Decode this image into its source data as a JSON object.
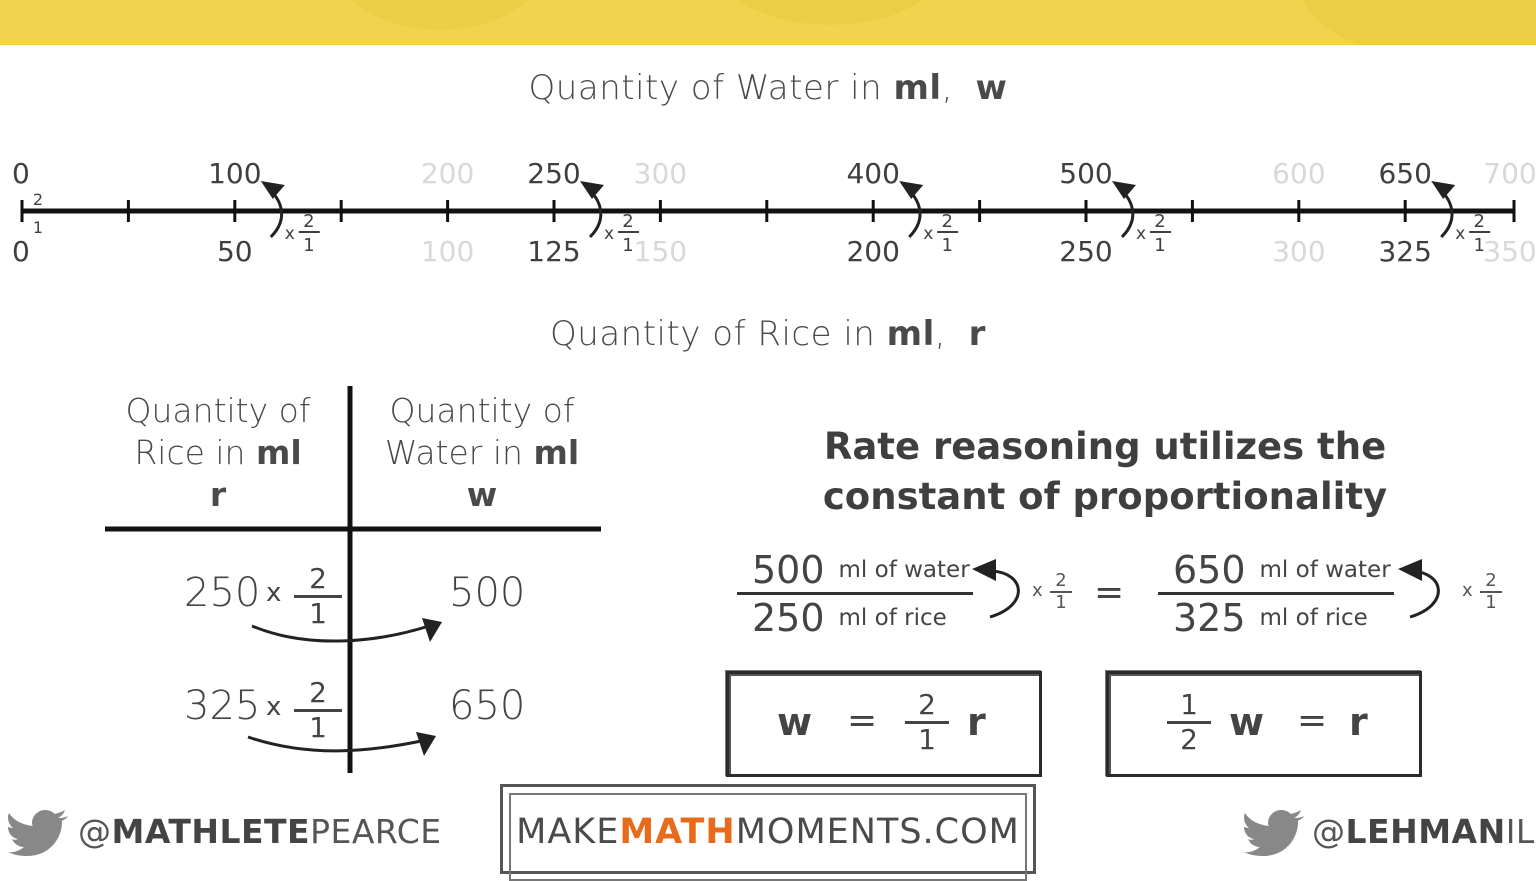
{
  "water_axis_title": {
    "text": "Quantity of Water in ",
    "bold_unit": "ml",
    "sep": ",",
    "var": "w"
  },
  "rice_axis_title": {
    "text": "Quantity of Rice in ",
    "bold_unit": "ml",
    "sep": ",",
    "var": "r"
  },
  "number_line": {
    "top_labels": [
      {
        "text": "0",
        "faded": false
      },
      {
        "text": "100",
        "faded": false
      },
      {
        "text": "200",
        "faded": true
      },
      {
        "text": "250",
        "faded": false
      },
      {
        "text": "300",
        "faded": true
      },
      {
        "text": "400",
        "faded": false
      },
      {
        "text": "500",
        "faded": false
      },
      {
        "text": "600",
        "faded": true
      },
      {
        "text": "650",
        "faded": false
      },
      {
        "text": "700",
        "faded": true
      }
    ],
    "bottom_labels": [
      {
        "text": "0",
        "faded": false
      },
      {
        "text": "50",
        "faded": false
      },
      {
        "text": "100",
        "faded": true
      },
      {
        "text": "125",
        "faded": false
      },
      {
        "text": "150",
        "faded": true
      },
      {
        "text": "200",
        "faded": false
      },
      {
        "text": "250",
        "faded": false
      },
      {
        "text": "300",
        "faded": true
      },
      {
        "text": "325",
        "faded": false
      },
      {
        "text": "350",
        "faded": true
      }
    ],
    "multiplier": {
      "x": "x",
      "num": "2",
      "den": "1"
    }
  },
  "table": {
    "col1_header": {
      "line1": "Quantity of",
      "line2": "Rice in ",
      "unit": "ml",
      "var": "r"
    },
    "col2_header": {
      "line1": "Quantity of",
      "line2": "Water in ",
      "unit": "ml",
      "var": "w"
    },
    "rows": [
      {
        "rice": "250",
        "water": "500",
        "x": "x",
        "num": "2",
        "den": "1"
      },
      {
        "rice": "325",
        "water": "650",
        "x": "x",
        "num": "2",
        "den": "1"
      }
    ]
  },
  "headline": {
    "line1": "Rate reasoning utilizes the",
    "line2": "constant of proportionality"
  },
  "ratios": [
    {
      "num": "500",
      "num_unit": "ml of water",
      "den": "250",
      "den_unit": "ml of rice",
      "x": "x",
      "mnum": "2",
      "mden": "1"
    },
    {
      "num": "650",
      "num_unit": "ml of water",
      "den": "325",
      "den_unit": "ml of rice",
      "x": "x",
      "mnum": "2",
      "mden": "1"
    }
  ],
  "equals": "=",
  "equation1": {
    "lhs": "w",
    "eq": "=",
    "num": "2",
    "den": "1",
    "var": "r"
  },
  "equation2": {
    "num": "1",
    "den": "2",
    "var": "w",
    "eq": "=",
    "rhs": "r"
  },
  "footer": {
    "left_handle": {
      "at": "@",
      "bold": "MATHLETE",
      "rest": "PEARCE"
    },
    "brand": {
      "part1": "MAKE",
      "part2": "MATH",
      "part3": "MOMENTS.COM"
    },
    "right_handle": {
      "at": "@",
      "bold": "LEHMAN",
      "rest": "ILER"
    }
  },
  "colors": {
    "banner": "#f3d34e",
    "accent": "#e86a1b",
    "text": "#444444",
    "faded": "#d8d8d8"
  }
}
